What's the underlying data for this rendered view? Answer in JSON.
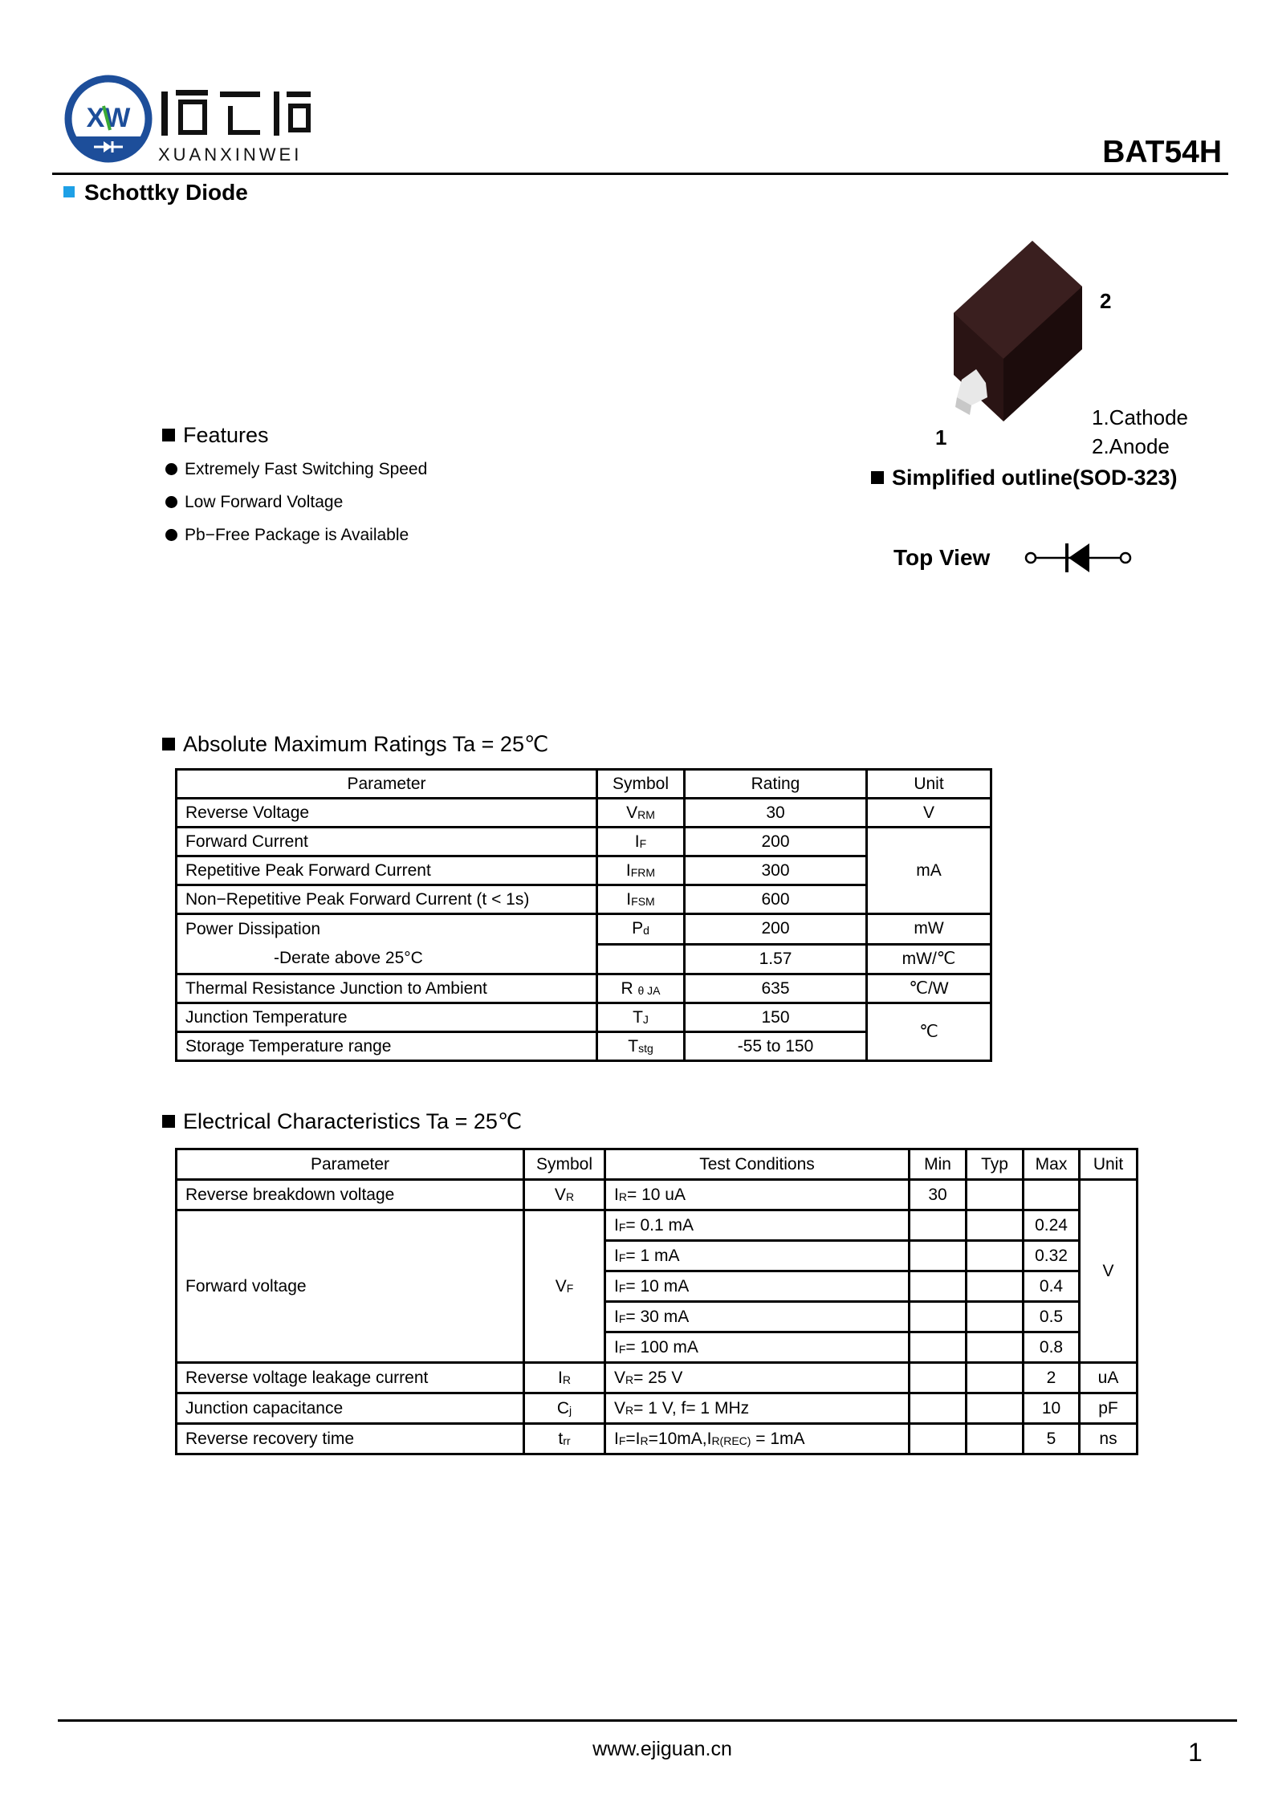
{
  "header": {
    "logo": {
      "monogram": "XW",
      "chinese_name": "烜芯微",
      "latin_name": "XUANXINWEI",
      "brand_blue": "#1d4e9a",
      "accent_green": "#3aaa35"
    },
    "part_number": "BAT54H",
    "product_type": "Schottky Diode",
    "product_type_marker_color": "#1ea0e6"
  },
  "features": {
    "title": "Features",
    "items": [
      "Extremely Fast Switching Speed",
      "Low Forward Voltage",
      "Pb−Free Package is Available"
    ]
  },
  "package": {
    "pin2_label": "2",
    "pin1_label": "1",
    "pins": [
      "1.Cathode",
      "2.Anode"
    ],
    "outline_title": "Simplified outline(SOD-323)",
    "top_view_label": "Top View",
    "symbol_icon": "diode-symbol"
  },
  "abs_max": {
    "title": "Absolute Maximum Ratings Ta = 25℃",
    "headers": [
      "Parameter",
      "Symbol",
      "Rating",
      "Unit"
    ],
    "rows": [
      {
        "parameter": "Reverse  Voltage",
        "symbol": [
          "V",
          "RM"
        ],
        "rating": "30",
        "unit": "V"
      },
      {
        "parameter": "Forward  Current",
        "symbol": [
          "I",
          "F"
        ],
        "rating": "200",
        "unit": "mA"
      },
      {
        "parameter": "Repetitive Peak Forward Current",
        "symbol": [
          "I",
          "FRM"
        ],
        "rating": "300"
      },
      {
        "parameter": "Non−Repetitive Peak Forward Current (t < 1s)",
        "symbol": [
          "I",
          "FSM"
        ],
        "rating": "600"
      },
      {
        "parameter": "Power Dissipation",
        "symbol": [
          "P",
          "d"
        ],
        "rating": "200",
        "unit": "mW"
      },
      {
        "parameter": "-Derate above 25°C",
        "symbol": [
          ""
        ],
        "rating": "1.57",
        "unit": "mW/℃"
      },
      {
        "parameter": "Thermal Resistance Junction to Ambient",
        "symbol": [
          "R ",
          "θ JA"
        ],
        "rating": "635",
        "unit": "℃/W"
      },
      {
        "parameter": "Junction Temperature",
        "symbol": [
          "T",
          "J"
        ],
        "rating": "150",
        "unit": "℃"
      },
      {
        "parameter": "Storage Temperature range",
        "symbol": [
          "T",
          "stg"
        ],
        "rating": "-55 to 150"
      }
    ]
  },
  "electrical": {
    "title": "Electrical Characteristics Ta = 25℃",
    "headers": [
      "Parameter",
      "Symbol",
      "Test Conditions",
      "Min",
      "Typ",
      "Max",
      "Unit"
    ],
    "rows": [
      {
        "parameter": "Reverse breakdown voltage",
        "symbol": [
          "V",
          "R"
        ],
        "condition": [
          "I",
          "R",
          "= 10 uA"
        ],
        "min": "30",
        "typ": "",
        "max": "",
        "unit": "V"
      },
      {
        "parameter": "Forward voltage",
        "symbol": [
          "V",
          "F"
        ],
        "condition": [
          "I",
          "F",
          "= 0.1 mA"
        ],
        "min": "",
        "typ": "",
        "max": "0.24"
      },
      {
        "condition": [
          "I",
          "F",
          "= 1 mA"
        ],
        "min": "",
        "typ": "",
        "max": "0.32"
      },
      {
        "condition": [
          "I",
          "F",
          "= 10 mA"
        ],
        "min": "",
        "typ": "",
        "max": "0.4"
      },
      {
        "condition": [
          "I",
          "F",
          "= 30 mA"
        ],
        "min": "",
        "typ": "",
        "max": "0.5"
      },
      {
        "condition": [
          "I",
          "F",
          "= 100 mA"
        ],
        "min": "",
        "typ": "",
        "max": "0.8"
      },
      {
        "parameter": "Reverse voltage leakage current",
        "symbol": [
          "I",
          "R"
        ],
        "condition": [
          "V",
          "R",
          "= 25 V"
        ],
        "min": "",
        "typ": "",
        "max": "2",
        "unit": "uA"
      },
      {
        "parameter": "Junction  capacitance",
        "symbol": [
          "C",
          "j"
        ],
        "condition": [
          "V",
          "R",
          "= 1 V, f= 1 MHz"
        ],
        "min": "",
        "typ": "",
        "max": "10",
        "unit": "pF"
      },
      {
        "parameter": "Reverse recovery time",
        "symbol": [
          "t",
          "rr"
        ],
        "condition": [
          "I",
          "F",
          "=I",
          "R",
          "=10mA,I",
          "R(REC)",
          " = 1mA"
        ],
        "min": "",
        "typ": "",
        "max": "5",
        "unit": "ns"
      }
    ]
  },
  "footer": {
    "website": "www.ejiguan.cn",
    "page_number": "1"
  }
}
